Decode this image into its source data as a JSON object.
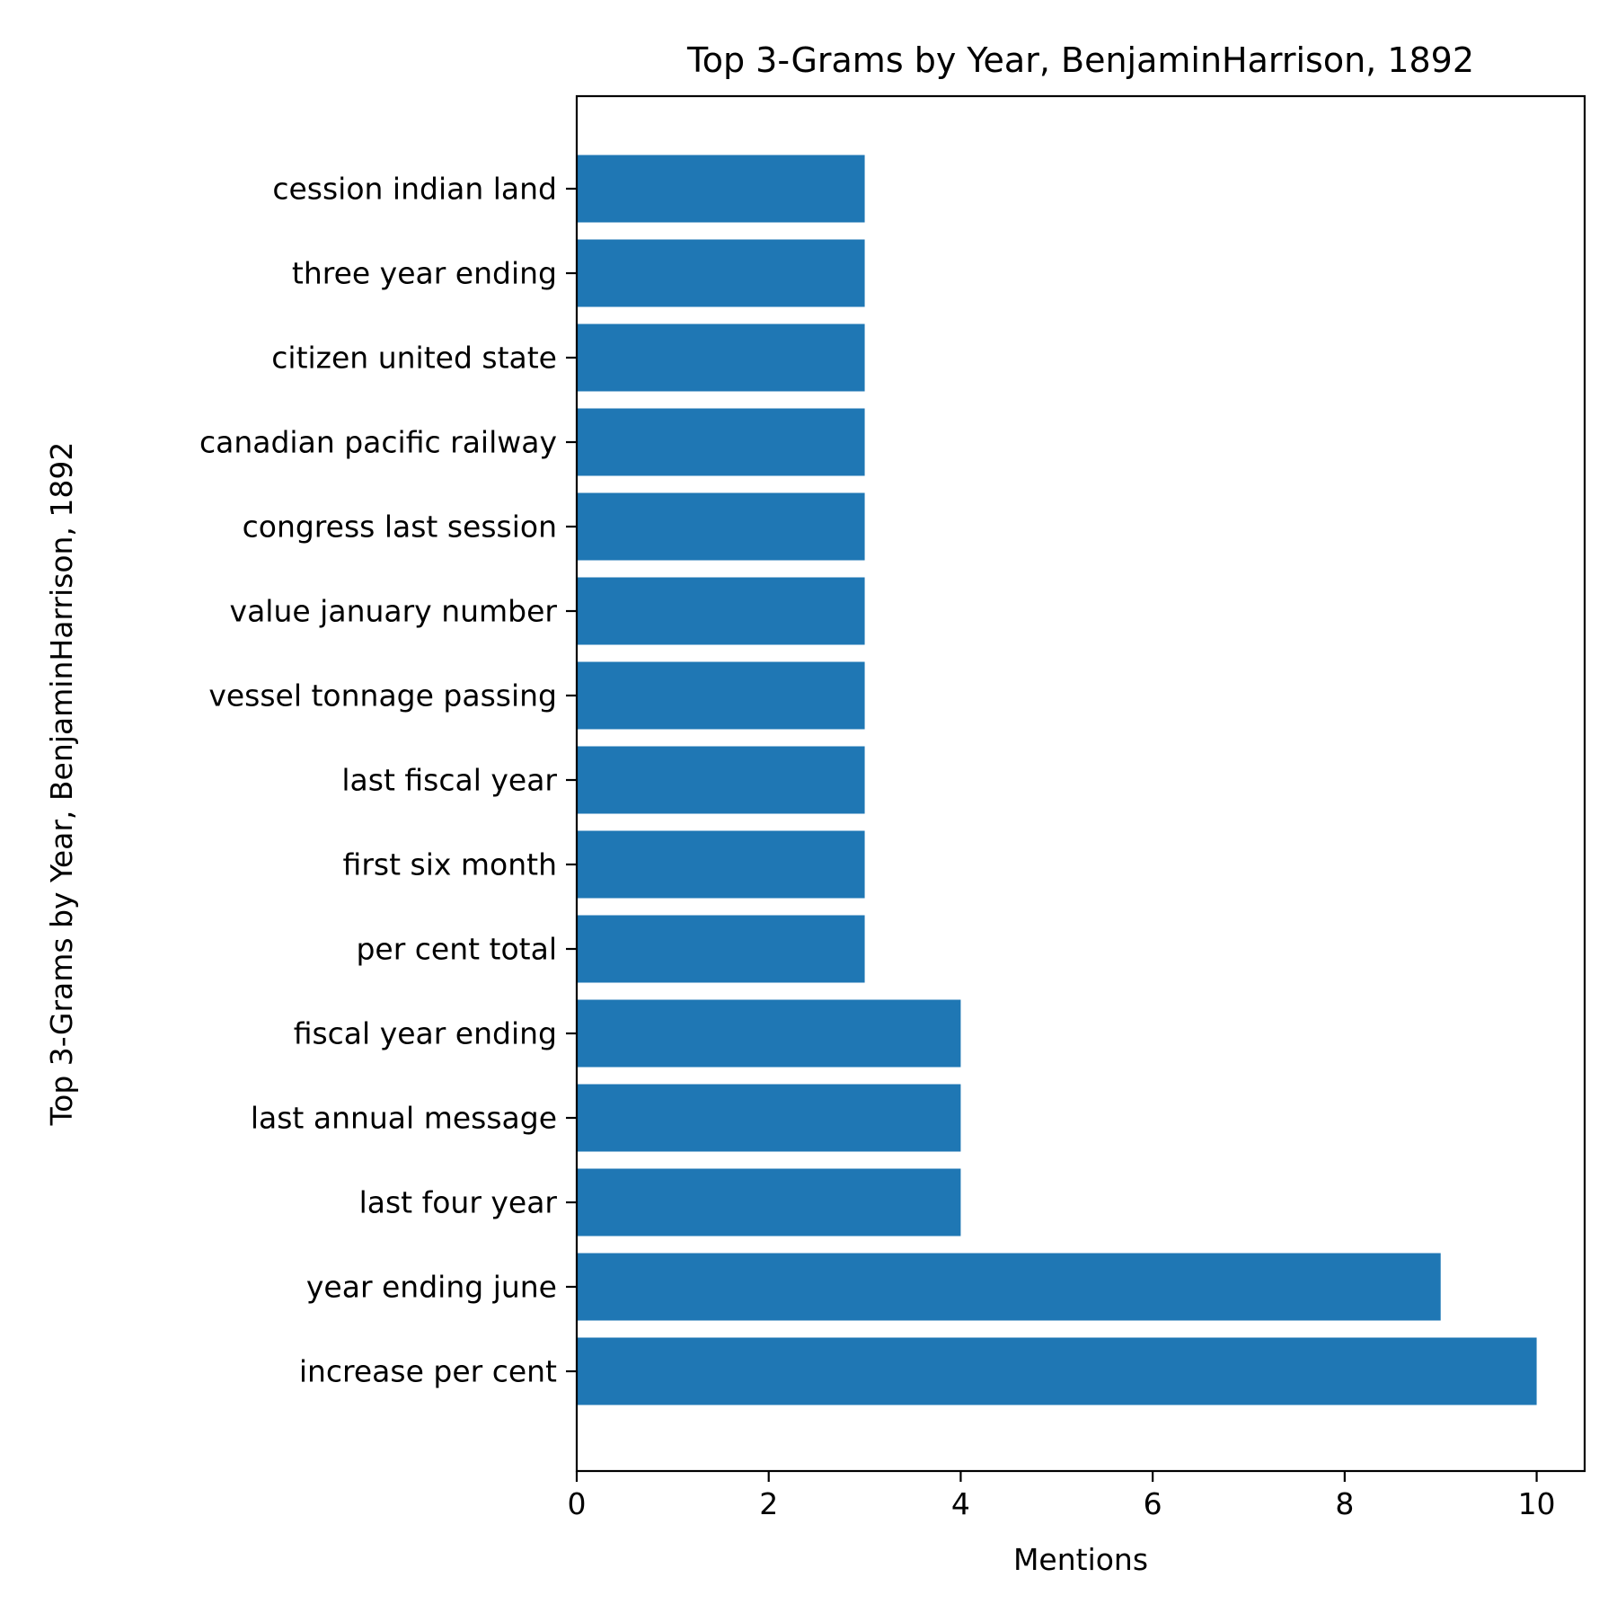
{
  "chart_data": {
    "type": "bar",
    "orientation": "horizontal",
    "title": "Top 3-Grams by Year, BenjaminHarrison, 1892",
    "xlabel": "Mentions",
    "ylabel": "Top 3-Grams by Year, BenjaminHarrison, 1892",
    "categories": [
      "increase per cent",
      "year ending june",
      "last four year",
      "last annual message",
      "fiscal year ending",
      "per cent total",
      "first six month",
      "last fiscal year",
      "vessel tonnage passing",
      "value january number",
      "congress last session",
      "canadian pacific railway",
      "citizen united state",
      "three year ending",
      "cession indian land"
    ],
    "values": [
      10,
      9,
      4,
      4,
      4,
      3,
      3,
      3,
      3,
      3,
      3,
      3,
      3,
      3,
      3
    ],
    "xlim": [
      0,
      10.5
    ],
    "xticks": [
      0,
      2,
      4,
      6,
      8,
      10
    ],
    "grid": false,
    "bar_color": "#1f77b4"
  }
}
